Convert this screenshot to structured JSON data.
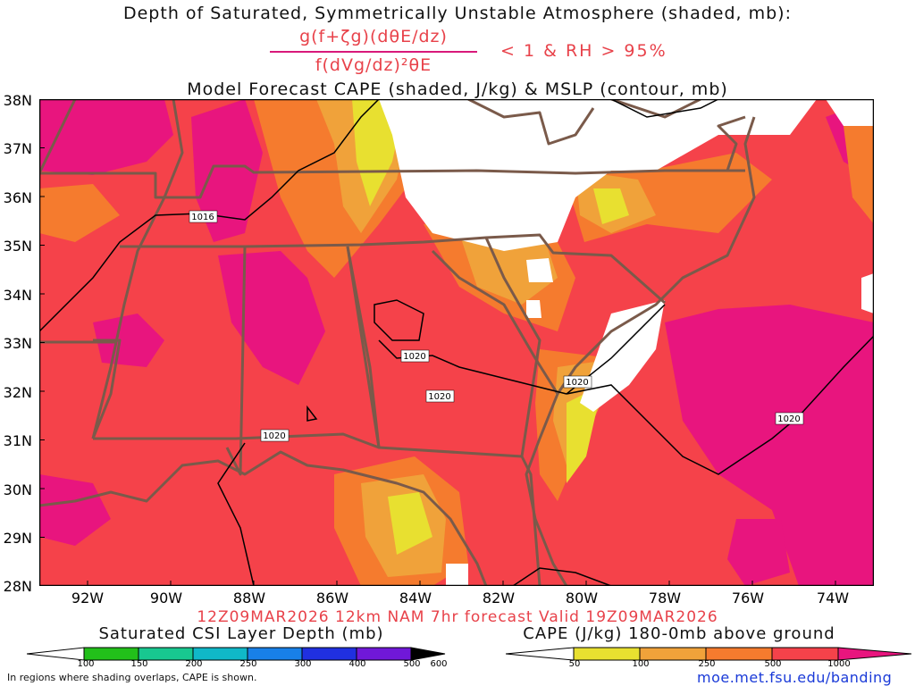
{
  "header": {
    "title": "Depth of Saturated, Symmetrically Unstable Atmosphere (shaded, mb):",
    "fraction_numerator": "g(f+ζg)(dθE/dz)",
    "fraction_denominator": "f(dVg/dz)²θE",
    "condition": "< 1 & RH > 95%",
    "subtitle": "Model Forecast CAPE (shaded, J/kg) & MSLP (contour, mb)"
  },
  "map": {
    "lat_labels": [
      "38N",
      "37N",
      "36N",
      "35N",
      "34N",
      "33N",
      "32N",
      "31N",
      "30N",
      "29N",
      "28N"
    ],
    "lon_labels": [
      "92W",
      "90W",
      "88W",
      "86W",
      "84W",
      "82W",
      "80W",
      "78W",
      "76W",
      "74W"
    ],
    "isobar_labels": [
      "1016",
      "1020",
      "1020",
      "1020",
      "1020",
      "1020"
    ],
    "colors": {
      "cape_1000_plus": "#e8157e",
      "cape_500_1000": "#f5424a",
      "cape_250_500": "#f57b2e",
      "cape_100_250": "#f0a23a",
      "cape_50_100": "#e8e030",
      "state_borders": "#7a5a4a",
      "isobars": "#000000"
    }
  },
  "footer": {
    "valid": "12Z09MAR2026 12km NAM 7hr forecast Valid 19Z09MAR2026",
    "csi_colorbar_title": "Saturated CSI Layer Depth (mb)",
    "csi_ticks": [
      "100",
      "150",
      "200",
      "250",
      "300",
      "400",
      "500",
      "600"
    ],
    "csi_colors": [
      "#ffffff",
      "#22c01a",
      "#18c890",
      "#10b8c8",
      "#1880e8",
      "#2030e0",
      "#7018d8",
      "#000000"
    ],
    "cape_colorbar_title": "CAPE (J/kg) 180-0mb above ground",
    "cape_ticks": [
      "50",
      "100",
      "250",
      "500",
      "1000"
    ],
    "cape_colors": [
      "#ffffff",
      "#e8e030",
      "#f0a23a",
      "#f57b2e",
      "#f5424a",
      "#e8157e"
    ],
    "note": "In regions where shading overlaps, CAPE is shown.",
    "url": "moe.met.fsu.edu/banding"
  }
}
